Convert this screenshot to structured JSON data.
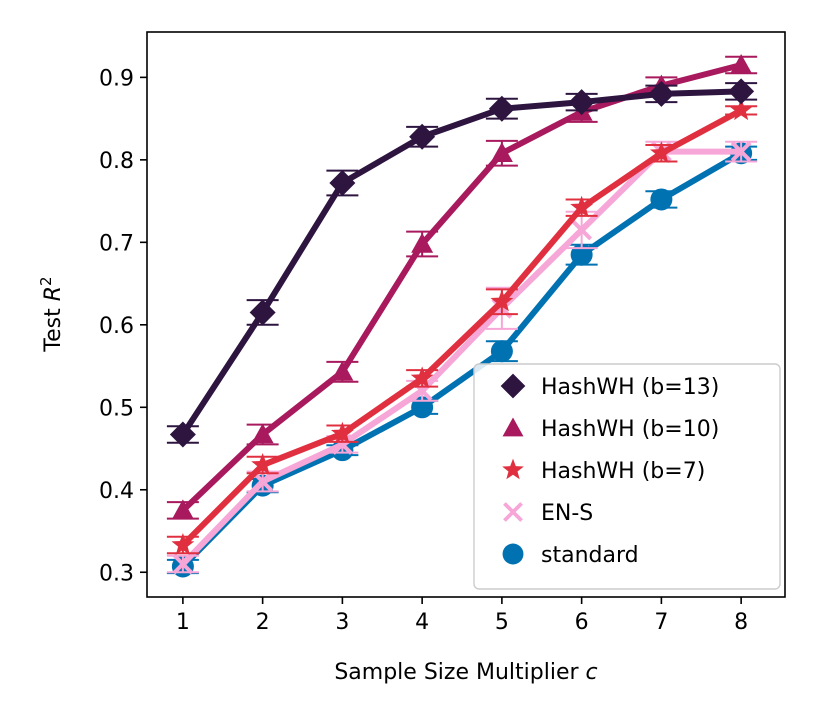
{
  "chart_data": {
    "type": "line",
    "title": "",
    "xlabel": "Sample Size Multiplier",
    "xlabel_var": "c",
    "ylabel": "Test",
    "ylabel_var": "R",
    "ylabel_sup": "2",
    "x": [
      1,
      2,
      3,
      4,
      5,
      6,
      7,
      8
    ],
    "xlim": [
      0.55,
      8.55
    ],
    "ylim": [
      0.27,
      0.955
    ],
    "xticks": [
      1,
      2,
      3,
      4,
      5,
      6,
      7,
      8
    ],
    "yticks": [
      0.3,
      0.4,
      0.5,
      0.6,
      0.7,
      0.8,
      0.9
    ],
    "ytick_labels": [
      "0.3",
      "0.4",
      "0.5",
      "0.6",
      "0.7",
      "0.8",
      "0.9"
    ],
    "legend_position": "lower-right",
    "series": [
      {
        "name": "standard",
        "color": "#0072b2",
        "marker": "circle",
        "values": [
          0.307,
          0.405,
          0.448,
          0.5,
          0.568,
          0.685,
          0.752,
          0.808
        ],
        "errors": [
          0.008,
          0.008,
          0.006,
          0.008,
          0.012,
          0.012,
          0.01,
          0.008
        ]
      },
      {
        "name": "EN-S",
        "color": "#f7a6d8",
        "marker": "x",
        "values": [
          0.31,
          0.41,
          0.455,
          0.52,
          0.62,
          0.715,
          0.81,
          0.81
        ],
        "errors": [
          0.01,
          0.012,
          0.01,
          0.012,
          0.025,
          0.022,
          0.012,
          0.012
        ]
      },
      {
        "name": "HashWH (b=7)",
        "color": "#e03040",
        "marker": "star",
        "values": [
          0.333,
          0.43,
          0.468,
          0.535,
          0.628,
          0.742,
          0.808,
          0.86
        ],
        "errors": [
          0.01,
          0.01,
          0.01,
          0.01,
          0.015,
          0.01,
          0.01,
          0.005
        ]
      },
      {
        "name": "HashWH (b=10)",
        "color": "#a8195d",
        "marker": "triangle",
        "values": [
          0.375,
          0.467,
          0.543,
          0.698,
          0.808,
          0.858,
          0.89,
          0.915
        ],
        "errors": [
          0.01,
          0.012,
          0.012,
          0.015,
          0.015,
          0.012,
          0.01,
          0.01
        ]
      },
      {
        "name": "HashWH (b=13)",
        "color": "#2d1540",
        "marker": "diamond",
        "values": [
          0.467,
          0.615,
          0.772,
          0.828,
          0.862,
          0.87,
          0.88,
          0.883
        ],
        "errors": [
          0.01,
          0.015,
          0.015,
          0.012,
          0.012,
          0.01,
          0.01,
          0.01
        ]
      }
    ],
    "legend_order": [
      "HashWH (b=13)",
      "HashWH (b=10)",
      "HashWH (b=7)",
      "EN-S",
      "standard"
    ]
  }
}
